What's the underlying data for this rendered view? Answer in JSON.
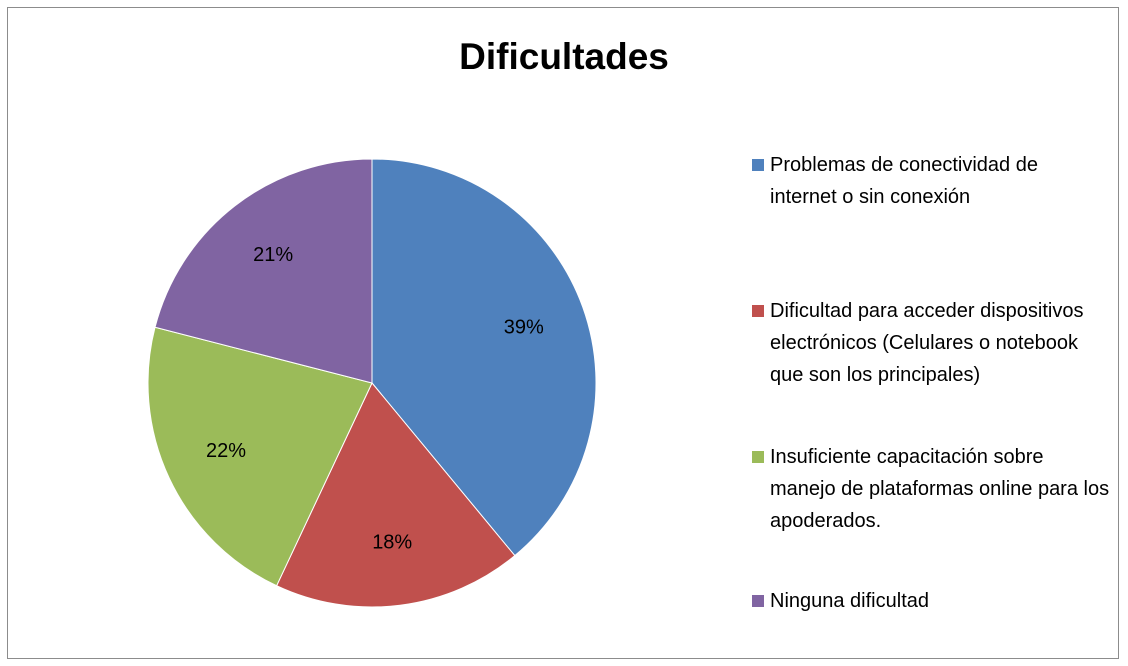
{
  "chart_data": {
    "type": "pie",
    "title": "Dificultades",
    "categories": [
      "Problemas de conectividad de internet o sin conexión",
      "Dificultad para acceder dispositivos electrónicos (Celulares o notebook que son los principales)",
      "Insuficiente capacitación sobre manejo de plataformas online para los apoderados.",
      "Ninguna dificultad"
    ],
    "values": [
      39,
      18,
      22,
      21
    ],
    "value_labels": [
      "39%",
      "18%",
      "22%",
      "21%"
    ],
    "colors": [
      "#4f81bd",
      "#c0504d",
      "#9bbb59",
      "#8064a2"
    ],
    "legend": "right"
  }
}
